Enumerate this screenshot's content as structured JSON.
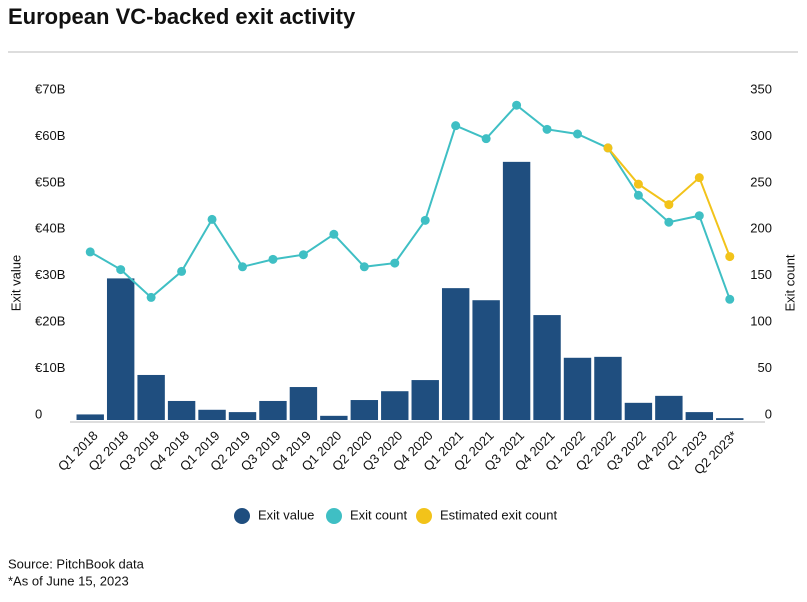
{
  "chart_data": {
    "type": "combo",
    "title": "European VC-backed exit activity",
    "ylabel": "Exit value",
    "y2label": "Exit count",
    "source": "Source: PitchBook data",
    "note": "*As of June 15, 2023",
    "categories": [
      "Q1 2018",
      "Q2 2018",
      "Q3 2018",
      "Q4 2018",
      "Q1 2019",
      "Q2 2019",
      "Q3 2019",
      "Q4 2019",
      "Q1 2020",
      "Q2 2020",
      "Q3 2020",
      "Q4 2020",
      "Q1 2021",
      "Q2 2021",
      "Q3 2021",
      "Q4 2021",
      "Q1 2022",
      "Q2 2022",
      "Q3 2022",
      "Q4 2022",
      "Q1 2023",
      "Q2 2023*"
    ],
    "series": [
      {
        "name": "Exit value",
        "type": "bar",
        "color": "#1f4e7f",
        "axis": "y",
        "values": [
          1.2,
          30.5,
          9.7,
          4.1,
          2.2,
          1.7,
          4.1,
          7.1,
          0.9,
          4.3,
          6.2,
          8.6,
          28.4,
          25.8,
          55.6,
          22.6,
          13.4,
          13.6,
          3.7,
          5.2,
          1.7,
          0.4
        ]
      },
      {
        "name": "Exit count",
        "type": "line",
        "color": "#3fbfc4",
        "axis": "y2",
        "values": [
          181,
          162,
          132,
          160,
          216,
          165,
          173,
          178,
          200,
          165,
          169,
          215,
          317,
          303,
          339,
          313,
          308,
          293,
          242,
          213,
          220,
          130
        ]
      },
      {
        "name": "Estimated exit count",
        "type": "line",
        "color": "#f2c31a",
        "axis": "y2",
        "values": [
          null,
          null,
          null,
          null,
          null,
          null,
          null,
          null,
          null,
          null,
          null,
          null,
          null,
          null,
          null,
          null,
          null,
          293,
          254,
          232,
          261,
          176
        ]
      }
    ],
    "ylim": [
      0,
      70
    ],
    "yticks": [
      0,
      {
        "value": 10,
        "label": "€10B"
      },
      {
        "value": 20,
        "label": "€20B"
      },
      {
        "value": 30,
        "label": "€30B"
      },
      {
        "value": 40,
        "label": "€40B"
      },
      {
        "value": 50,
        "label": "€50B"
      },
      {
        "value": 60,
        "label": "€60B"
      },
      {
        "value": 70,
        "label": "€70B"
      }
    ],
    "y2lim": [
      0,
      350
    ],
    "y2ticks": [
      0,
      50,
      100,
      150,
      200,
      250,
      300,
      350
    ],
    "grid": false,
    "legend": "bottom"
  }
}
